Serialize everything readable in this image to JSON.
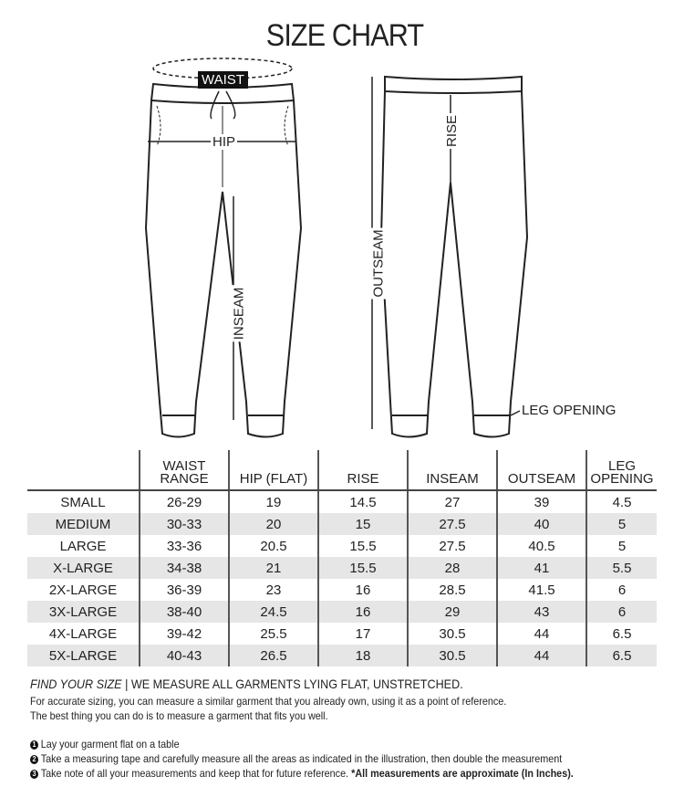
{
  "title": "SIZE CHART",
  "labels": {
    "waist": "WAIST",
    "hip": "HIP",
    "inseam": "INSEAM",
    "rise": "RISE",
    "outseam": "OUTSEAM",
    "leg_opening": "LEG OPENING"
  },
  "table": {
    "headers": [
      "",
      "WAIST RANGE",
      "HIP (FLAT)",
      "RISE",
      "INSEAM",
      "OUTSEAM",
      "LEG OPENING"
    ],
    "rows": [
      [
        "SMALL",
        "26-29",
        "19",
        "14.5",
        "27",
        "39",
        "4.5"
      ],
      [
        "MEDIUM",
        "30-33",
        "20",
        "15",
        "27.5",
        "40",
        "5"
      ],
      [
        "LARGE",
        "33-36",
        "20.5",
        "15.5",
        "27.5",
        "40.5",
        "5"
      ],
      [
        "X-LARGE",
        "34-38",
        "21",
        "15.5",
        "28",
        "41",
        "5.5"
      ],
      [
        "2X-LARGE",
        "36-39",
        "23",
        "16",
        "28.5",
        "41.5",
        "6"
      ],
      [
        "3X-LARGE",
        "38-40",
        "24.5",
        "16",
        "29",
        "43",
        "6"
      ],
      [
        "4X-LARGE",
        "39-42",
        "25.5",
        "17",
        "30.5",
        "44",
        "6.5"
      ],
      [
        "5X-LARGE",
        "40-43",
        "26.5",
        "18",
        "30.5",
        "44",
        "6.5"
      ]
    ]
  },
  "footer": {
    "heading_italic": "FIND YOUR SIZE",
    "heading_rest": "| WE MEASURE ALL GARMENTS LYING FLAT, UNSTRETCHED.",
    "line1": "For accurate sizing, you can measure a similar garment that you already own, using it as a point of reference.",
    "line2": "The best thing you can do is to measure a garment that fits you well.",
    "steps": [
      {
        "num": "1",
        "text": "Lay your garment flat on a table"
      },
      {
        "num": "2",
        "text": "Take a measuring tape and carefully measure all the areas as indicated in the illustration, then double the measurement"
      },
      {
        "num": "3",
        "text": "Take note of all your measurements and keep that for future reference.",
        "bold": "*All measurements are approximate (In Inches)."
      }
    ]
  }
}
